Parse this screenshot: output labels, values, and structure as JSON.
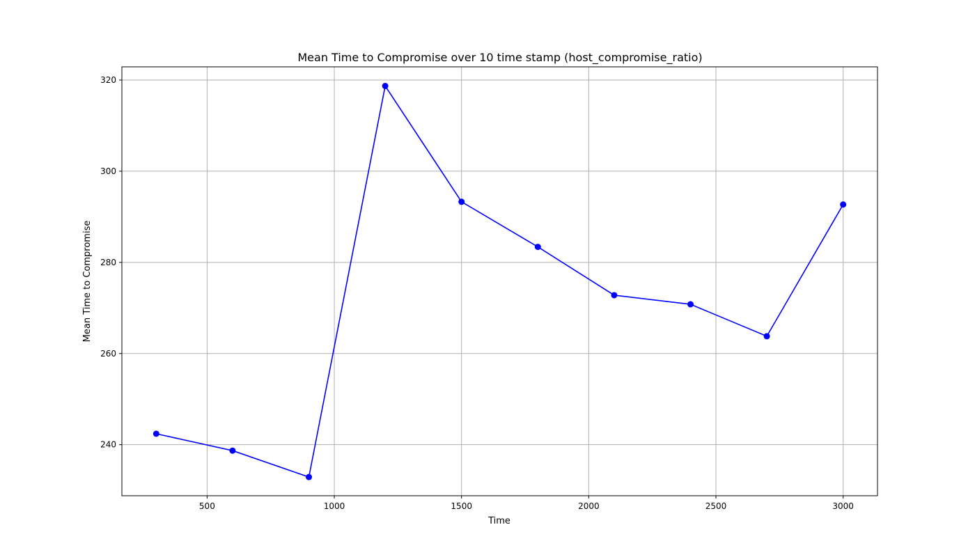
{
  "chart_data": {
    "type": "line",
    "title": "Mean Time to Compromise over 10 time stamp (host_compromise_ratio)",
    "xlabel": "Time",
    "ylabel": "Mean Time to Compromise",
    "xlim": [
      165,
      3135
    ],
    "ylim": [
      228.8,
      322.9
    ],
    "xticks": [
      500,
      1000,
      1500,
      2000,
      2500,
      3000
    ],
    "yticks": [
      240,
      260,
      280,
      300,
      320
    ],
    "grid": true,
    "series": [
      {
        "color": "#0000ff",
        "x": [
          300,
          600,
          900,
          1200,
          1500,
          1800,
          2100,
          2400,
          2700,
          3000
        ],
        "y": [
          242.4,
          238.7,
          232.9,
          318.7,
          293.3,
          283.4,
          272.8,
          270.8,
          263.8,
          292.7
        ]
      }
    ]
  }
}
